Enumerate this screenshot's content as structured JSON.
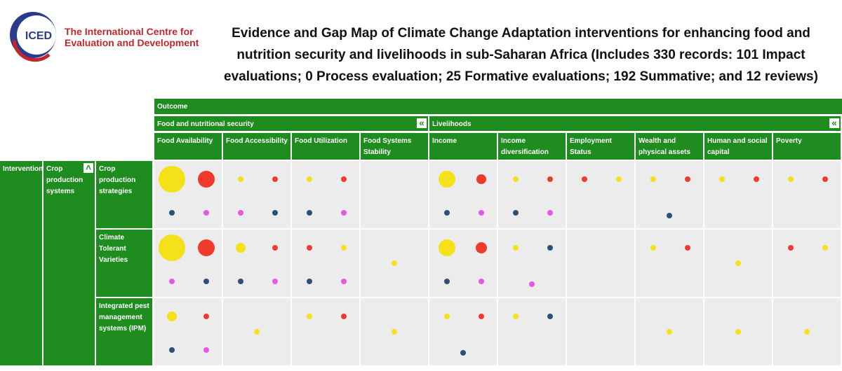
{
  "header": {
    "logo_mark": "ICED",
    "logo_lines": [
      "The International Centre for",
      "Evaluation and Development"
    ],
    "title": "Evidence and Gap Map of Climate Change Adaptation interventions for enhancing food and nutrition security and livelihoods in sub-Saharan Africa (Includes 330 records: 101 Impact evaluations; 0 Process evaluation; 25 Formative evaluations; 192 Summative; and 12 reviews)"
  },
  "map": {
    "outcome_label": "Outcome",
    "groups": [
      {
        "name": "Food and nutritional security",
        "span": 4
      },
      {
        "name": "Livelihoods",
        "span": 6
      }
    ],
    "columns": [
      "Food Availability",
      "Food Accessibility",
      "Food Utilization",
      "Food Systems Stability",
      "Income",
      "Income diversification",
      "Employment Status",
      "Wealth and physical assets",
      "Human and social capital",
      "Poverty"
    ],
    "intervention_label": "Intervention",
    "intervention_group": "Crop production systems",
    "rows": [
      {
        "name": "Crop production strategies",
        "cells": [
          [
            {
              "color": "#f5e11a",
              "value": 22
            },
            {
              "color": "#f03a2e",
              "value": 9
            },
            {
              "color": "#2c5077",
              "value": 1
            },
            {
              "color": "#e558e3",
              "value": 1
            }
          ],
          [
            {
              "color": "#f5e11a",
              "value": 1
            },
            {
              "color": "#f03a2e",
              "value": 1
            },
            {
              "color": "#e558e3",
              "value": 1
            },
            {
              "color": "#2c5077",
              "value": 1
            }
          ],
          [
            {
              "color": "#f5e11a",
              "value": 1
            },
            {
              "color": "#f03a2e",
              "value": 1
            },
            {
              "color": "#2c5077",
              "value": 1
            },
            {
              "color": "#e558e3",
              "value": 1
            }
          ],
          [],
          [
            {
              "color": "#f5e11a",
              "value": 9
            },
            {
              "color": "#f03a2e",
              "value": 3
            },
            {
              "color": "#2c5077",
              "value": 1
            },
            {
              "color": "#e558e3",
              "value": 1
            }
          ],
          [
            {
              "color": "#f5e11a",
              "value": 1
            },
            {
              "color": "#f03a2e",
              "value": 1
            },
            {
              "color": "#2c5077",
              "value": 1
            },
            {
              "color": "#e558e3",
              "value": 1
            }
          ],
          [
            {
              "color": "#f03a2e",
              "value": 1
            },
            {
              "color": "#f5e11a",
              "value": 1
            }
          ],
          [
            {
              "color": "#f5e11a",
              "value": 1
            },
            {
              "color": "#f03a2e",
              "value": 1
            },
            {
              "color": "#2c5077",
              "value": 1
            }
          ],
          [
            {
              "color": "#f5e11a",
              "value": 1
            },
            {
              "color": "#f03a2e",
              "value": 1
            }
          ],
          [
            {
              "color": "#f5e11a",
              "value": 1
            },
            {
              "color": "#f03a2e",
              "value": 1
            }
          ]
        ]
      },
      {
        "name": "Climate Tolerant Varieties",
        "cells": [
          [
            {
              "color": "#f5e11a",
              "value": 22
            },
            {
              "color": "#f03a2e",
              "value": 9
            },
            {
              "color": "#e558e3",
              "value": 1
            },
            {
              "color": "#2c5077",
              "value": 1
            }
          ],
          [
            {
              "color": "#f5e11a",
              "value": 3
            },
            {
              "color": "#f03a2e",
              "value": 1
            },
            {
              "color": "#2c5077",
              "value": 1
            },
            {
              "color": "#e558e3",
              "value": 1
            }
          ],
          [
            {
              "color": "#f03a2e",
              "value": 1
            },
            {
              "color": "#f5e11a",
              "value": 1
            },
            {
              "color": "#2c5077",
              "value": 1
            },
            {
              "color": "#e558e3",
              "value": 1
            }
          ],
          [
            {
              "color": "#f5e11a",
              "value": 1
            }
          ],
          [
            {
              "color": "#f5e11a",
              "value": 9
            },
            {
              "color": "#f03a2e",
              "value": 4
            },
            {
              "color": "#2c5077",
              "value": 1
            },
            {
              "color": "#e558e3",
              "value": 1
            }
          ],
          [
            {
              "color": "#f5e11a",
              "value": 1
            },
            {
              "color": "#2c5077",
              "value": 1
            },
            {
              "color": "#e558e3",
              "value": 1
            }
          ],
          [],
          [
            {
              "color": "#f5e11a",
              "value": 1
            },
            {
              "color": "#f03a2e",
              "value": 1
            }
          ],
          [
            {
              "color": "#f5e11a",
              "value": 1
            }
          ],
          [
            {
              "color": "#f03a2e",
              "value": 1
            },
            {
              "color": "#f5e11a",
              "value": 1
            }
          ]
        ]
      },
      {
        "name": "Integrated pest management systems (IPM)",
        "cells": [
          [
            {
              "color": "#f5e11a",
              "value": 3
            },
            {
              "color": "#f03a2e",
              "value": 1
            },
            {
              "color": "#2c5077",
              "value": 1
            },
            {
              "color": "#e558e3",
              "value": 1
            }
          ],
          [
            {
              "color": "#f5e11a",
              "value": 1
            }
          ],
          [
            {
              "color": "#f5e11a",
              "value": 1
            },
            {
              "color": "#f03a2e",
              "value": 1
            }
          ],
          [
            {
              "color": "#f5e11a",
              "value": 1
            }
          ],
          [
            {
              "color": "#f5e11a",
              "value": 1
            },
            {
              "color": "#f03a2e",
              "value": 1
            },
            {
              "color": "#2c5077",
              "value": 1
            }
          ],
          [
            {
              "color": "#f5e11a",
              "value": 1
            },
            {
              "color": "#2c5077",
              "value": 1
            }
          ],
          [],
          [
            {
              "color": "#f5e11a",
              "value": 1
            }
          ],
          [
            {
              "color": "#f5e11a",
              "value": 1
            }
          ],
          [
            {
              "color": "#f5e11a",
              "value": 1
            }
          ]
        ]
      }
    ]
  }
}
